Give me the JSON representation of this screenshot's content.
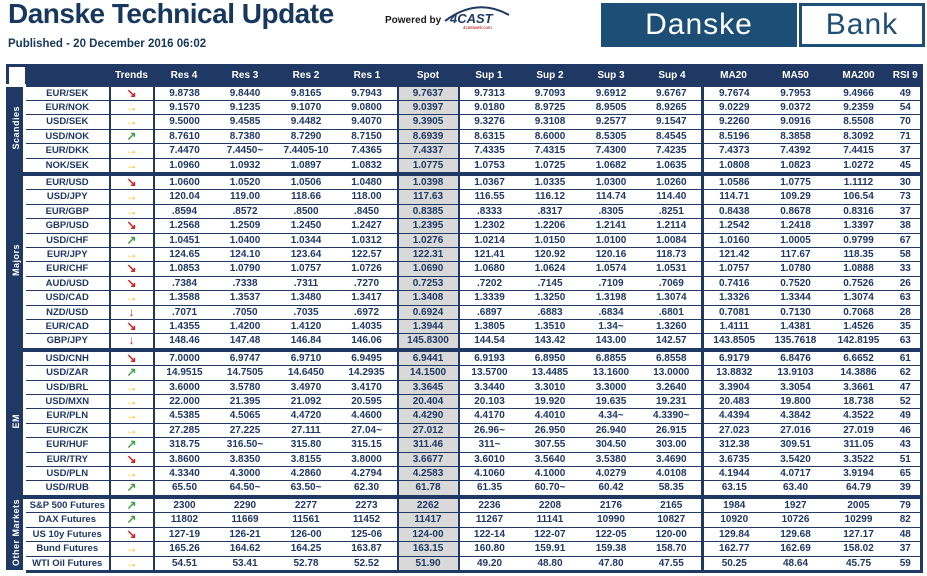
{
  "page": {
    "title": "Danske Technical Update",
    "published": "Published - 20 December 2016 06:02",
    "powered_by": "Powered by",
    "brand": {
      "name": "4CAST",
      "sub": "4castweb.com"
    },
    "logo": {
      "left": "Danske",
      "right": "Bank"
    }
  },
  "colors": {
    "navy": "#1F3864",
    "title_blue": "#17375D",
    "logo_blue": "#1D4F76",
    "spot_bg": "#D9D9D9",
    "trend_green": "#43A047",
    "trend_amber": "#FFB400",
    "trend_red": "#CC2222"
  },
  "trend_icons": {
    "up-right": {
      "glyph": "↗",
      "color": "#43A047"
    },
    "right": {
      "glyph": "→",
      "color": "#FFB400"
    },
    "down-right": {
      "glyph": "↘",
      "color": "#CC2222"
    },
    "down": {
      "glyph": "↓",
      "color": "#CC2222"
    }
  },
  "table": {
    "columns": [
      {
        "key": "trends",
        "label": "Trends"
      },
      {
        "key": "res-4",
        "label": "Res 4"
      },
      {
        "key": "res-3",
        "label": "Res 3"
      },
      {
        "key": "res-2",
        "label": "Res 2"
      },
      {
        "key": "res-1",
        "label": "Res 1"
      },
      {
        "key": "spot",
        "label": "Spot"
      },
      {
        "key": "sup-1",
        "label": "Sup 1"
      },
      {
        "key": "sup-2",
        "label": "Sup 2"
      },
      {
        "key": "sup-3",
        "label": "Sup 3"
      },
      {
        "key": "sup-4",
        "label": "Sup 4"
      },
      {
        "key": "ma20",
        "label": "MA20"
      },
      {
        "key": "ma50",
        "label": "MA50"
      },
      {
        "key": "ma200",
        "label": "MA200"
      },
      {
        "key": "rsi-9",
        "label": "RSI 9"
      }
    ],
    "groups": [
      {
        "label": "Scandies",
        "rows": [
          {
            "name": "EUR/SEK",
            "trend": "down-right",
            "values": [
              "9.8738",
              "9.8440",
              "9.8165",
              "9.7943",
              "9.7637",
              "9.7313",
              "9.7093",
              "9.6912",
              "9.6767",
              "9.7674",
              "9.7953",
              "9.4966",
              "49"
            ]
          },
          {
            "name": "EUR/NOK",
            "trend": "right",
            "values": [
              "9.1570",
              "9.1235",
              "9.1070",
              "9.0800",
              "9.0397",
              "9.0180",
              "8.9725",
              "8.9505",
              "8.9265",
              "9.0229",
              "9.0372",
              "9.2359",
              "54"
            ]
          },
          {
            "name": "USD/SEK",
            "trend": "right",
            "values": [
              "9.5000",
              "9.4585",
              "9.4482",
              "9.4070",
              "9.3905",
              "9.3276",
              "9.3108",
              "9.2577",
              "9.1547",
              "9.2260",
              "9.0916",
              "8.5508",
              "70"
            ]
          },
          {
            "name": "USD/NOK",
            "trend": "up-right",
            "values": [
              "8.7610",
              "8.7380",
              "8.7290",
              "8.7150",
              "8.6939",
              "8.6315",
              "8.6000",
              "8.5305",
              "8.4545",
              "8.5196",
              "8.3858",
              "8.3092",
              "71"
            ]
          },
          {
            "name": "EUR/DKK",
            "trend": "right",
            "values": [
              "7.4470",
              "7.4450~",
              "7.4405-10",
              "7.4365",
              "7.4337",
              "7.4335",
              "7.4315",
              "7.4300",
              "7.4235",
              "7.4373",
              "7.4392",
              "7.4415",
              "37"
            ]
          },
          {
            "name": "NOK/SEK",
            "trend": "right",
            "values": [
              "1.0960",
              "1.0932",
              "1.0897",
              "1.0832",
              "1.0775",
              "1.0753",
              "1.0725",
              "1.0682",
              "1.0635",
              "1.0808",
              "1.0823",
              "1.0272",
              "45"
            ]
          }
        ]
      },
      {
        "label": "Majors",
        "rows": [
          {
            "name": "EUR/USD",
            "trend": "down-right",
            "values": [
              "1.0600",
              "1.0520",
              "1.0506",
              "1.0480",
              "1.0398",
              "1.0367",
              "1.0335",
              "1.0300",
              "1.0260",
              "1.0586",
              "1.0775",
              "1.1112",
              "30"
            ]
          },
          {
            "name": "USD/JPY",
            "trend": "right",
            "values": [
              "120.04",
              "119.00",
              "118.66",
              "118.00",
              "117.63",
              "116.55",
              "116.12",
              "114.74",
              "114.40",
              "114.71",
              "109.29",
              "106.54",
              "73"
            ]
          },
          {
            "name": "EUR/GBP",
            "trend": "right",
            "values": [
              ".8594",
              ".8572",
              ".8500",
              ".8450",
              "0.8385",
              ".8333",
              ".8317",
              ".8305",
              ".8251",
              "0.8438",
              "0.8678",
              "0.8316",
              "37"
            ]
          },
          {
            "name": "GBP/USD",
            "trend": "down-right",
            "values": [
              "1.2568",
              "1.2509",
              "1.2450",
              "1.2427",
              "1.2395",
              "1.2302",
              "1.2206",
              "1.2141",
              "1.2114",
              "1.2542",
              "1.2418",
              "1.3397",
              "38"
            ]
          },
          {
            "name": "USD/CHF",
            "trend": "up-right",
            "values": [
              "1.0451",
              "1.0400",
              "1.0344",
              "1.0312",
              "1.0276",
              "1.0214",
              "1.0150",
              "1.0100",
              "1.0084",
              "1.0160",
              "1.0005",
              "0.9799",
              "67"
            ]
          },
          {
            "name": "EUR/JPY",
            "trend": "right",
            "values": [
              "124.65",
              "124.10",
              "123.64",
              "122.57",
              "122.31",
              "121.41",
              "120.92",
              "120.16",
              "118.73",
              "121.42",
              "117.67",
              "118.35",
              "58"
            ]
          },
          {
            "name": "EUR/CHF",
            "trend": "down-right",
            "values": [
              "1.0853",
              "1.0790",
              "1.0757",
              "1.0726",
              "1.0690",
              "1.0680",
              "1.0624",
              "1.0574",
              "1.0531",
              "1.0757",
              "1.0780",
              "1.0888",
              "33"
            ]
          },
          {
            "name": "AUD/USD",
            "trend": "down-right",
            "values": [
              ".7384",
              ".7338",
              ".7311",
              ".7270",
              "0.7253",
              ".7202",
              ".7145",
              ".7109",
              ".7069",
              "0.7416",
              "0.7520",
              "0.7526",
              "26"
            ]
          },
          {
            "name": "USD/CAD",
            "trend": "right",
            "values": [
              "1.3588",
              "1.3537",
              "1.3480",
              "1.3417",
              "1.3408",
              "1.3339",
              "1.3250",
              "1.3198",
              "1.3074",
              "1.3326",
              "1.3344",
              "1.3074",
              "63"
            ]
          },
          {
            "name": "NZD/USD",
            "trend": "down",
            "values": [
              ".7071",
              ".7050",
              ".7035",
              ".6972",
              "0.6924",
              ".6897",
              ".6883",
              ".6834",
              ".6801",
              "0.7081",
              "0.7130",
              "0.7068",
              "28"
            ]
          },
          {
            "name": "EUR/CAD",
            "trend": "down-right",
            "values": [
              "1.4355",
              "1.4200",
              "1.4120",
              "1.4035",
              "1.3944",
              "1.3805",
              "1.3510",
              "1.34~",
              "1.3260",
              "1.4111",
              "1.4381",
              "1.4526",
              "35"
            ]
          },
          {
            "name": "GBP/JPY",
            "trend": "down",
            "values": [
              "148.46",
              "147.48",
              "146.84",
              "146.06",
              "145.8300",
              "144.54",
              "143.42",
              "143.00",
              "142.57",
              "143.8505",
              "135.7618",
              "142.8195",
              "63"
            ]
          }
        ]
      },
      {
        "label": "EM",
        "rows": [
          {
            "name": "USD/CNH",
            "trend": "down-right",
            "values": [
              "7.0000",
              "6.9747",
              "6.9710",
              "6.9495",
              "6.9441",
              "6.9193",
              "6.8950",
              "6.8855",
              "6.8558",
              "6.9179",
              "6.8476",
              "6.6652",
              "61"
            ]
          },
          {
            "name": "USD/ZAR",
            "trend": "up-right",
            "values": [
              "14.9515",
              "14.7505",
              "14.6450",
              "14.2935",
              "14.1500",
              "13.5700",
              "13.4485",
              "13.1600",
              "13.0000",
              "13.8832",
              "13.9103",
              "14.3886",
              "62"
            ]
          },
          {
            "name": "USD/BRL",
            "trend": "right",
            "values": [
              "3.6000",
              "3.5780",
              "3.4970",
              "3.4170",
              "3.3645",
              "3.3440",
              "3.3010",
              "3.3000",
              "3.2640",
              "3.3904",
              "3.3054",
              "3.3661",
              "47"
            ]
          },
          {
            "name": "USD/MXN",
            "trend": "right",
            "values": [
              "22.000",
              "21.395",
              "21.092",
              "20.595",
              "20.404",
              "20.103",
              "19.920",
              "19.635",
              "19.231",
              "20.483",
              "19.800",
              "18.738",
              "52"
            ]
          },
          {
            "name": "EUR/PLN",
            "trend": "right",
            "values": [
              "4.5385",
              "4.5065",
              "4.4720",
              "4.4600",
              "4.4290",
              "4.4170",
              "4.4010",
              "4.34~",
              "4.3390~",
              "4.4394",
              "4.3842",
              "4.3522",
              "49"
            ]
          },
          {
            "name": "EUR/CZK",
            "trend": "right",
            "values": [
              "27.285",
              "27.225",
              "27.111",
              "27.04~",
              "27.012",
              "26.96~",
              "26.950",
              "26.940",
              "26.915",
              "27.023",
              "27.016",
              "27.019",
              "46"
            ]
          },
          {
            "name": "EUR/HUF",
            "trend": "up-right",
            "values": [
              "318.75",
              "316.50~",
              "315.80",
              "315.15",
              "311.46",
              "311~",
              "307.55",
              "304.50",
              "303.00",
              "312.38",
              "309.51",
              "311.05",
              "43"
            ]
          },
          {
            "name": "EUR/TRY",
            "trend": "down-right",
            "values": [
              "3.8600",
              "3.8350",
              "3.8155",
              "3.8000",
              "3.6677",
              "3.6010",
              "3.5640",
              "3.5380",
              "3.4690",
              "3.6735",
              "3.5420",
              "3.3522",
              "51"
            ]
          },
          {
            "name": "USD/PLN",
            "trend": "right",
            "values": [
              "4.3340",
              "4.3000",
              "4.2860",
              "4.2794",
              "4.2583",
              "4.1060",
              "4.1000",
              "4.0279",
              "4.0108",
              "4.1944",
              "4.0717",
              "3.9194",
              "65"
            ]
          },
          {
            "name": "USD/RUB",
            "trend": "up-right",
            "values": [
              "65.50",
              "64.50~",
              "63.50~",
              "62.30",
              "61.78",
              "61.35",
              "60.70~",
              "60.42",
              "58.35",
              "63.15",
              "63.40",
              "64.79",
              "39"
            ]
          }
        ]
      },
      {
        "label": "Other Markets",
        "rows": [
          {
            "name": "S&P 500 Futures",
            "trend": "up-right",
            "values": [
              "2300",
              "2290",
              "2277",
              "2273",
              "2262",
              "2236",
              "2208",
              "2176",
              "2165",
              "1984",
              "1927",
              "2005",
              "79"
            ]
          },
          {
            "name": "DAX Futures",
            "trend": "up-right",
            "values": [
              "11802",
              "11669",
              "11561",
              "11452",
              "11417",
              "11267",
              "11141",
              "10990",
              "10827",
              "10920",
              "10726",
              "10299",
              "82"
            ]
          },
          {
            "name": "US 10y Futures",
            "trend": "down-right",
            "values": [
              "127-19",
              "126-21",
              "126-00",
              "125-06",
              "124-00",
              "122-14",
              "122-07",
              "122-05",
              "120-00",
              "129.84",
              "129.68",
              "127.17",
              "48"
            ]
          },
          {
            "name": "Bund Futures",
            "trend": "right",
            "values": [
              "165.26",
              "164.62",
              "164.25",
              "163.87",
              "163.15",
              "160.80",
              "159.91",
              "159.38",
              "158.70",
              "162.77",
              "162.69",
              "158.02",
              "37"
            ]
          },
          {
            "name": "WTI Oil Futures",
            "trend": "right",
            "values": [
              "54.51",
              "53.41",
              "52.78",
              "52.52",
              "51.90",
              "49.20",
              "48.80",
              "47.80",
              "47.55",
              "50.25",
              "48.64",
              "45.75",
              "59"
            ]
          }
        ]
      }
    ]
  }
}
